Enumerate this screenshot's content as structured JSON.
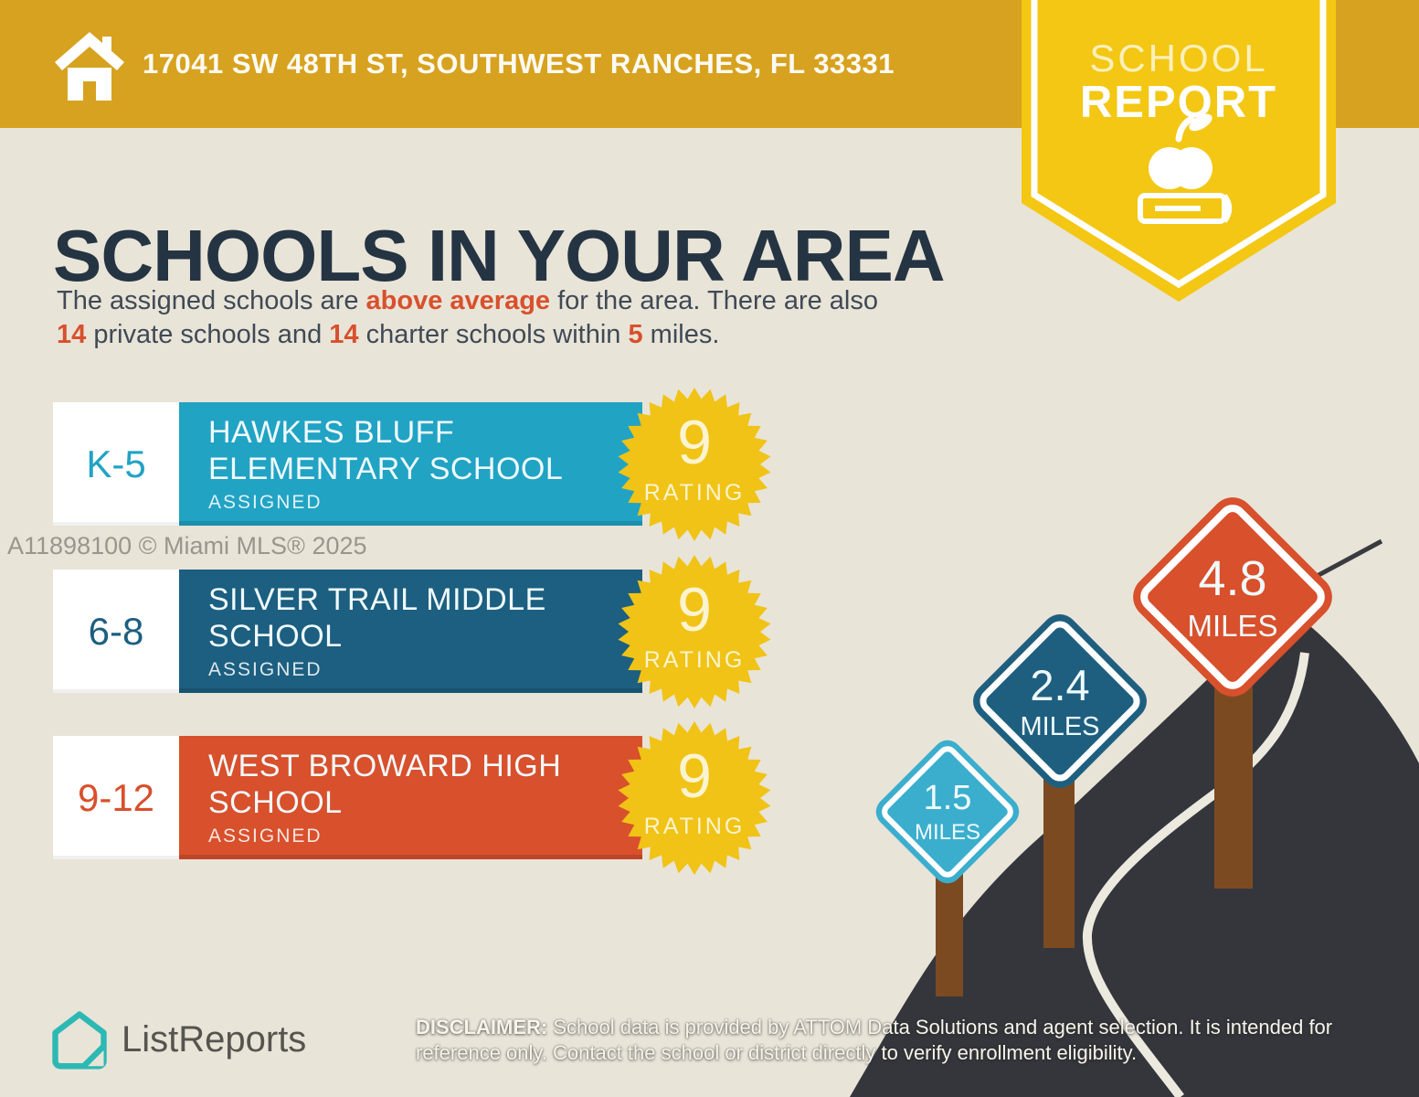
{
  "banner": {
    "address": "17041 SW 48TH ST, SOUTHWEST RANCHES, FL 33331"
  },
  "ribbon": {
    "line1": "SCHOOL",
    "line2": "REPORT"
  },
  "heading": "SCHOOLS IN YOUR AREA",
  "intro": {
    "segments": [
      {
        "text": "The assigned schools are ",
        "hl": false
      },
      {
        "text": "above average",
        "hl": true
      },
      {
        "text": " for the area. There are also ",
        "hl": false
      },
      {
        "text": "14",
        "hl": true
      },
      {
        "text": " private schools and ",
        "hl": false
      },
      {
        "text": "14",
        "hl": true
      },
      {
        "text": " charter schools within ",
        "hl": false
      },
      {
        "text": "5",
        "hl": true
      },
      {
        "text": " miles.",
        "hl": false
      }
    ]
  },
  "schools": [
    {
      "grade": "K-5",
      "name": "HAWKES BLUFF ELEMENTARY SCHOOL",
      "status": "ASSIGNED",
      "rating": "9",
      "rating_label": "RATING",
      "color": "#21A3C4"
    },
    {
      "grade": "6-8",
      "name": "SILVER TRAIL MIDDLE SCHOOL",
      "status": "ASSIGNED",
      "rating": "9",
      "rating_label": "RATING",
      "color": "#1C5F80"
    },
    {
      "grade": "9-12",
      "name": "WEST BROWARD HIGH SCHOOL",
      "status": "ASSIGNED",
      "rating": "9",
      "rating_label": "RATING",
      "color": "#D8502C"
    }
  ],
  "signs": [
    {
      "distance": "1.5",
      "unit": "MILES",
      "color": "#3BAECE"
    },
    {
      "distance": "2.4",
      "unit": "MILES",
      "color": "#1E5F80"
    },
    {
      "distance": "4.8",
      "unit": "MILES",
      "color": "#D8502C"
    }
  ],
  "watermark": "A11898100 © Miami MLS® 2025",
  "footer": {
    "brand": "ListReports",
    "disclaimer_label": "DISCLAIMER:",
    "disclaimer_text": " School data is provided by ATTOM Data Solutions and agent selection. It is intended for reference only. Contact the school or district directly to verify enrollment eligibility."
  },
  "colors": {
    "background": "#E9E4D8",
    "banner_gold": "#D7A21F",
    "ribbon_yellow": "#F3C713",
    "badge_yellow": "#F0C316",
    "heading_navy": "#253442",
    "accent_orange": "#D8502C",
    "road_dark": "#34363C",
    "post_brown": "#7C4A21",
    "brand_teal": "#2CB9B4"
  }
}
